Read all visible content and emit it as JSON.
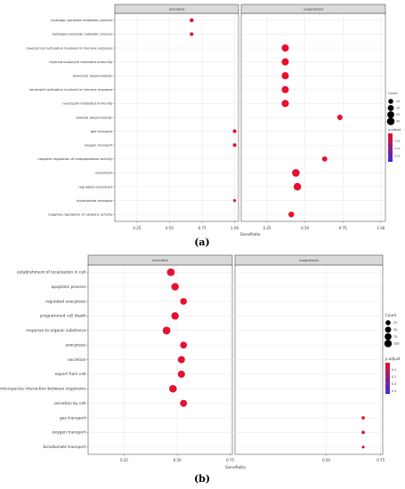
{
  "chart_data": [
    {
      "panel_label": "(a)",
      "type": "scatter",
      "xlabel": "GeneRatio",
      "facets": [
        "activated",
        "suppressed"
      ],
      "x_ticks": [
        [
          "0.25",
          "0.50",
          "0.75",
          "1.00"
        ],
        [
          "0.25",
          "0.50",
          "0.75",
          "1.00"
        ]
      ],
      "xlim": [
        [
          0.08,
          1.03
        ],
        [
          0.08,
          1.03
        ]
      ],
      "categories": [
        "hydrogen peroxide metabolic process",
        "hydrogen peroxide catabolic process",
        "myeloid cell activation involved in immune response",
        "myeloid leukocyte mediated immunity",
        "leukocyte degranulation",
        "neutrophil activation involved in immune response",
        "neutrophil mediated immunity",
        "platelet degranulation",
        "gas transport",
        "oxygen transport",
        "negative regulation of endopeptidase activity",
        "exocytosis",
        "regulated exocytosis",
        "bicarbonate transport",
        "negative regulation of catalytic activity"
      ],
      "points": [
        {
          "facet": 0,
          "term": "hydrogen peroxide metabolic process",
          "x": 0.67,
          "count": 5,
          "p_adjust": 0.001
        },
        {
          "facet": 0,
          "term": "hydrogen peroxide catabolic process",
          "x": 0.67,
          "count": 4,
          "p_adjust": 0.001
        },
        {
          "facet": 1,
          "term": "myeloid cell activation involved in immune response",
          "x": 0.37,
          "count": 34,
          "p_adjust": 0.001
        },
        {
          "facet": 1,
          "term": "myeloid leukocyte mediated immunity",
          "x": 0.37,
          "count": 34,
          "p_adjust": 0.001
        },
        {
          "facet": 1,
          "term": "leukocyte degranulation",
          "x": 0.37,
          "count": 33,
          "p_adjust": 0.001
        },
        {
          "facet": 1,
          "term": "neutrophil activation involved in immune response",
          "x": 0.37,
          "count": 33,
          "p_adjust": 0.001
        },
        {
          "facet": 1,
          "term": "neutrophil mediated immunity",
          "x": 0.37,
          "count": 33,
          "p_adjust": 0.001
        },
        {
          "facet": 1,
          "term": "platelet degranulation",
          "x": 0.73,
          "count": 14,
          "p_adjust": 0.001
        },
        {
          "facet": 0,
          "term": "gas transport",
          "x": 1.0,
          "count": 4,
          "p_adjust": 0.001
        },
        {
          "facet": 0,
          "term": "oxygen transport",
          "x": 1.0,
          "count": 4,
          "p_adjust": 0.001
        },
        {
          "facet": 1,
          "term": "negative regulation of endopeptidase activity",
          "x": 0.63,
          "count": 12,
          "p_adjust": 0.001
        },
        {
          "facet": 1,
          "term": "exocytosis",
          "x": 0.44,
          "count": 40,
          "p_adjust": 0.001
        },
        {
          "facet": 1,
          "term": "regulated exocytosis",
          "x": 0.45,
          "count": 38,
          "p_adjust": 0.001
        },
        {
          "facet": 0,
          "term": "bicarbonate transport",
          "x": 1.0,
          "count": 3,
          "p_adjust": 0.001
        },
        {
          "facet": 1,
          "term": "negative regulation of catalytic activity",
          "x": 0.41,
          "count": 16,
          "p_adjust": 0.001
        }
      ],
      "count_legend": {
        "title": "Count",
        "values": [
          10,
          20,
          30,
          40
        ]
      },
      "color_legend": {
        "title": "p.adjust",
        "ticks": [
          0.05,
          0.1,
          0.15
        ],
        "tick_labels": [
          "0.05",
          "0.10",
          "0.15"
        ],
        "range": [
          0.0,
          0.19
        ],
        "low_color": "#e8102c",
        "high_color": "#3d2bd8"
      }
    },
    {
      "panel_label": "(b)",
      "type": "scatter",
      "xlabel": "GeneRatio",
      "facets": [
        "activated",
        "suppressed"
      ],
      "x_ticks": [
        [
          "0.25",
          "0.50",
          "0.75"
        ],
        [
          "0.50",
          "0.75"
        ]
      ],
      "xlim": [
        [
          0.08,
          0.76
        ],
        [
          0.08,
          0.76
        ]
      ],
      "categories": [
        "establishment of localization in cell",
        "apoptotic process",
        "regulated exocytosis",
        "programmed cell death",
        "response to organic substance",
        "exocytosis",
        "secretion",
        "export from cell",
        "interspecies interaction between organisms",
        "secretion by cell",
        "gas transport",
        "oxygen transport",
        "bicarbonate transport"
      ],
      "points": [
        {
          "facet": 0,
          "term": "establishment of localization in cell",
          "x": 0.47,
          "count": 110,
          "p_adjust": 0.01
        },
        {
          "facet": 0,
          "term": "apoptotic process",
          "x": 0.49,
          "count": 100,
          "p_adjust": 0.01
        },
        {
          "facet": 0,
          "term": "regulated exocytosis",
          "x": 0.53,
          "count": 70,
          "p_adjust": 0.01
        },
        {
          "facet": 0,
          "term": "programmed cell death",
          "x": 0.49,
          "count": 100,
          "p_adjust": 0.01
        },
        {
          "facet": 0,
          "term": "response to organic substance",
          "x": 0.45,
          "count": 115,
          "p_adjust": 0.01
        },
        {
          "facet": 0,
          "term": "exocytosis",
          "x": 0.53,
          "count": 75,
          "p_adjust": 0.01
        },
        {
          "facet": 0,
          "term": "secretion",
          "x": 0.52,
          "count": 85,
          "p_adjust": 0.01
        },
        {
          "facet": 0,
          "term": "export from cell",
          "x": 0.52,
          "count": 85,
          "p_adjust": 0.01
        },
        {
          "facet": 0,
          "term": "interspecies interaction between organisms",
          "x": 0.48,
          "count": 105,
          "p_adjust": 0.01
        },
        {
          "facet": 0,
          "term": "secretion by cell",
          "x": 0.53,
          "count": 80,
          "p_adjust": 0.01
        },
        {
          "facet": 1,
          "term": "gas transport",
          "x": 0.67,
          "count": 4,
          "p_adjust": 0.01
        },
        {
          "facet": 1,
          "term": "oxygen transport",
          "x": 0.67,
          "count": 4,
          "p_adjust": 0.01
        },
        {
          "facet": 1,
          "term": "bicarbonate transport",
          "x": 0.67,
          "count": 3,
          "p_adjust": 0.01
        }
      ],
      "count_legend": {
        "title": "Count",
        "values": [
          25,
          50,
          75,
          100
        ]
      },
      "color_legend": {
        "title": "p.adjust",
        "ticks": [
          0.1,
          0.2,
          0.3,
          0.4
        ],
        "tick_labels": [
          "0.1",
          "0.2",
          "0.3",
          "0.4"
        ],
        "range": [
          0.0,
          0.44
        ],
        "low_color": "#e8102c",
        "high_color": "#3d2bd8"
      }
    }
  ]
}
